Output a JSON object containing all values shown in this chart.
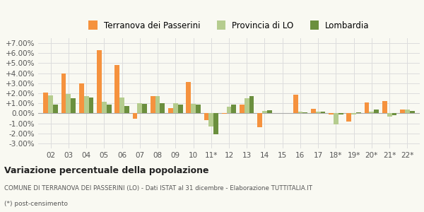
{
  "categories": [
    "02",
    "03",
    "04",
    "05",
    "06",
    "07",
    "08",
    "09",
    "10",
    "11*",
    "12",
    "13",
    "14",
    "15",
    "16",
    "17",
    "18*",
    "19*",
    "20*",
    "21*",
    "22*"
  ],
  "terranova": [
    0.021,
    0.04,
    0.03,
    0.063,
    0.0485,
    -0.0055,
    0.0175,
    0.0055,
    0.031,
    -0.0065,
    -0.0005,
    0.009,
    -0.0135,
    0.0,
    0.0185,
    0.0045,
    -0.001,
    -0.0085,
    0.011,
    0.0125,
    0.004
  ],
  "provincia": [
    0.018,
    0.0195,
    0.0175,
    0.0115,
    0.016,
    0.01,
    0.017,
    0.01,
    0.0095,
    -0.013,
    0.0065,
    0.015,
    0.0025,
    0.0,
    0.002,
    0.002,
    -0.011,
    -0.0015,
    0.002,
    -0.003,
    0.0035
  ],
  "lombardia": [
    0.0085,
    0.015,
    0.016,
    0.0085,
    0.007,
    0.0095,
    0.01,
    0.009,
    0.009,
    -0.021,
    0.009,
    0.0175,
    0.003,
    0.0005,
    0.001,
    0.002,
    -0.001,
    0.001,
    0.0035,
    -0.002,
    0.0025
  ],
  "color_terranova": "#f5923e",
  "color_provincia": "#b5cc8e",
  "color_lombardia": "#6b8f3e",
  "title": "Variazione percentuale della popolazione",
  "subtitle": "COMUNE DI TERRANOVA DEI PASSERINI (LO) - Dati ISTAT al 31 dicembre - Elaborazione TUTTITALIA.IT",
  "footnote": "(*) post-censimento",
  "ylim": [
    -0.035,
    0.075
  ],
  "yticks": [
    -0.03,
    -0.02,
    -0.01,
    0.0,
    0.01,
    0.02,
    0.03,
    0.04,
    0.05,
    0.06,
    0.07
  ],
  "legend_labels": [
    "Terranova dei Passerini",
    "Provincia di LO",
    "Lombardia"
  ],
  "background_color": "#f9f9f2"
}
